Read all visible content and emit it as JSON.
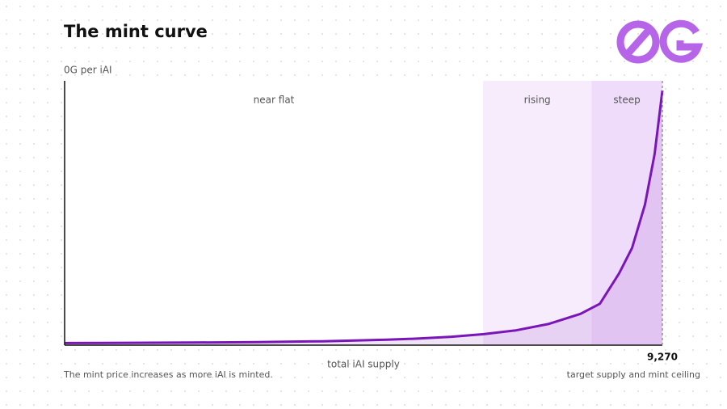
{
  "chart_data": {
    "type": "line",
    "title": "The mint curve",
    "y_label": "0G per iAI",
    "x_label": "total iAI supply",
    "footnote": "The mint price increases as more iAI is minted.",
    "ceiling_note": "target supply and mint ceiling",
    "xlim": [
      0,
      9270
    ],
    "ylim": [
      0,
      100
    ],
    "xticks": [
      {
        "value": 9270,
        "label": "9,270"
      }
    ],
    "regions": [
      {
        "label": "near flat",
        "start": 0,
        "end": 6490,
        "color": "#ffffff"
      },
      {
        "label": "rising",
        "start": 6490,
        "end": 8170,
        "color": "#f6ecfc"
      },
      {
        "label": "steep",
        "start": 8170,
        "end": 9270,
        "color": "#efdcfa"
      }
    ],
    "series": [
      {
        "color": "#7a16b8",
        "x": [
          0,
          1000,
          2000,
          3000,
          4000,
          5000,
          5500,
          6000,
          6500,
          7000,
          7500,
          8000,
          8300,
          8600,
          8800,
          9000,
          9150,
          9270
        ],
        "values": [
          0.5,
          0.6,
          0.7,
          0.9,
          1.2,
          1.8,
          2.3,
          3.0,
          4.0,
          5.5,
          8,
          12,
          16,
          28,
          38,
          55,
          75,
          100
        ]
      }
    ]
  }
}
